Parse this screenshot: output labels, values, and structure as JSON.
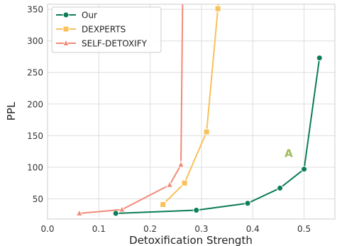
{
  "chart_data": {
    "type": "line",
    "title": "",
    "xlabel": "Detoxification Strength",
    "ylabel": "PPL",
    "xlim": [
      0.0,
      0.56
    ],
    "ylim": [
      18,
      358
    ],
    "xticks": [
      0.0,
      0.1,
      0.2,
      0.3,
      0.4,
      0.5
    ],
    "xtick_labels": [
      "0.0",
      "0.1",
      "0.2",
      "0.3",
      "0.4",
      "0.5"
    ],
    "yticks": [
      50,
      100,
      150,
      200,
      250,
      300,
      350
    ],
    "ytick_labels": [
      "50",
      "100",
      "150",
      "200",
      "250",
      "300",
      "350"
    ],
    "grid": true,
    "legend_position": "top-left",
    "series": [
      {
        "name": "Our",
        "color": "#0b7d55",
        "marker": "circle",
        "points": [
          [
            0.133,
            27
          ],
          [
            0.29,
            32
          ],
          [
            0.39,
            43
          ],
          [
            0.453,
            67
          ],
          [
            0.5,
            97
          ],
          [
            0.53,
            273
          ]
        ]
      },
      {
        "name": "DEXPERTS",
        "color": "#f9c15a",
        "marker": "square",
        "points": [
          [
            0.225,
            41
          ],
          [
            0.267,
            75
          ],
          [
            0.31,
            156
          ],
          [
            0.332,
            351
          ],
          [
            0.335,
            420
          ]
        ]
      },
      {
        "name": "SELF-DETOXIFY",
        "color": "#f08a78",
        "marker": "triangle",
        "points": [
          [
            0.062,
            27
          ],
          [
            0.145,
            33
          ],
          [
            0.238,
            72
          ],
          [
            0.26,
            104
          ],
          [
            0.264,
            420
          ]
        ]
      }
    ],
    "annotations": [
      {
        "text": "A",
        "x": 0.47,
        "y": 116,
        "color": "#9dbb56"
      }
    ]
  }
}
